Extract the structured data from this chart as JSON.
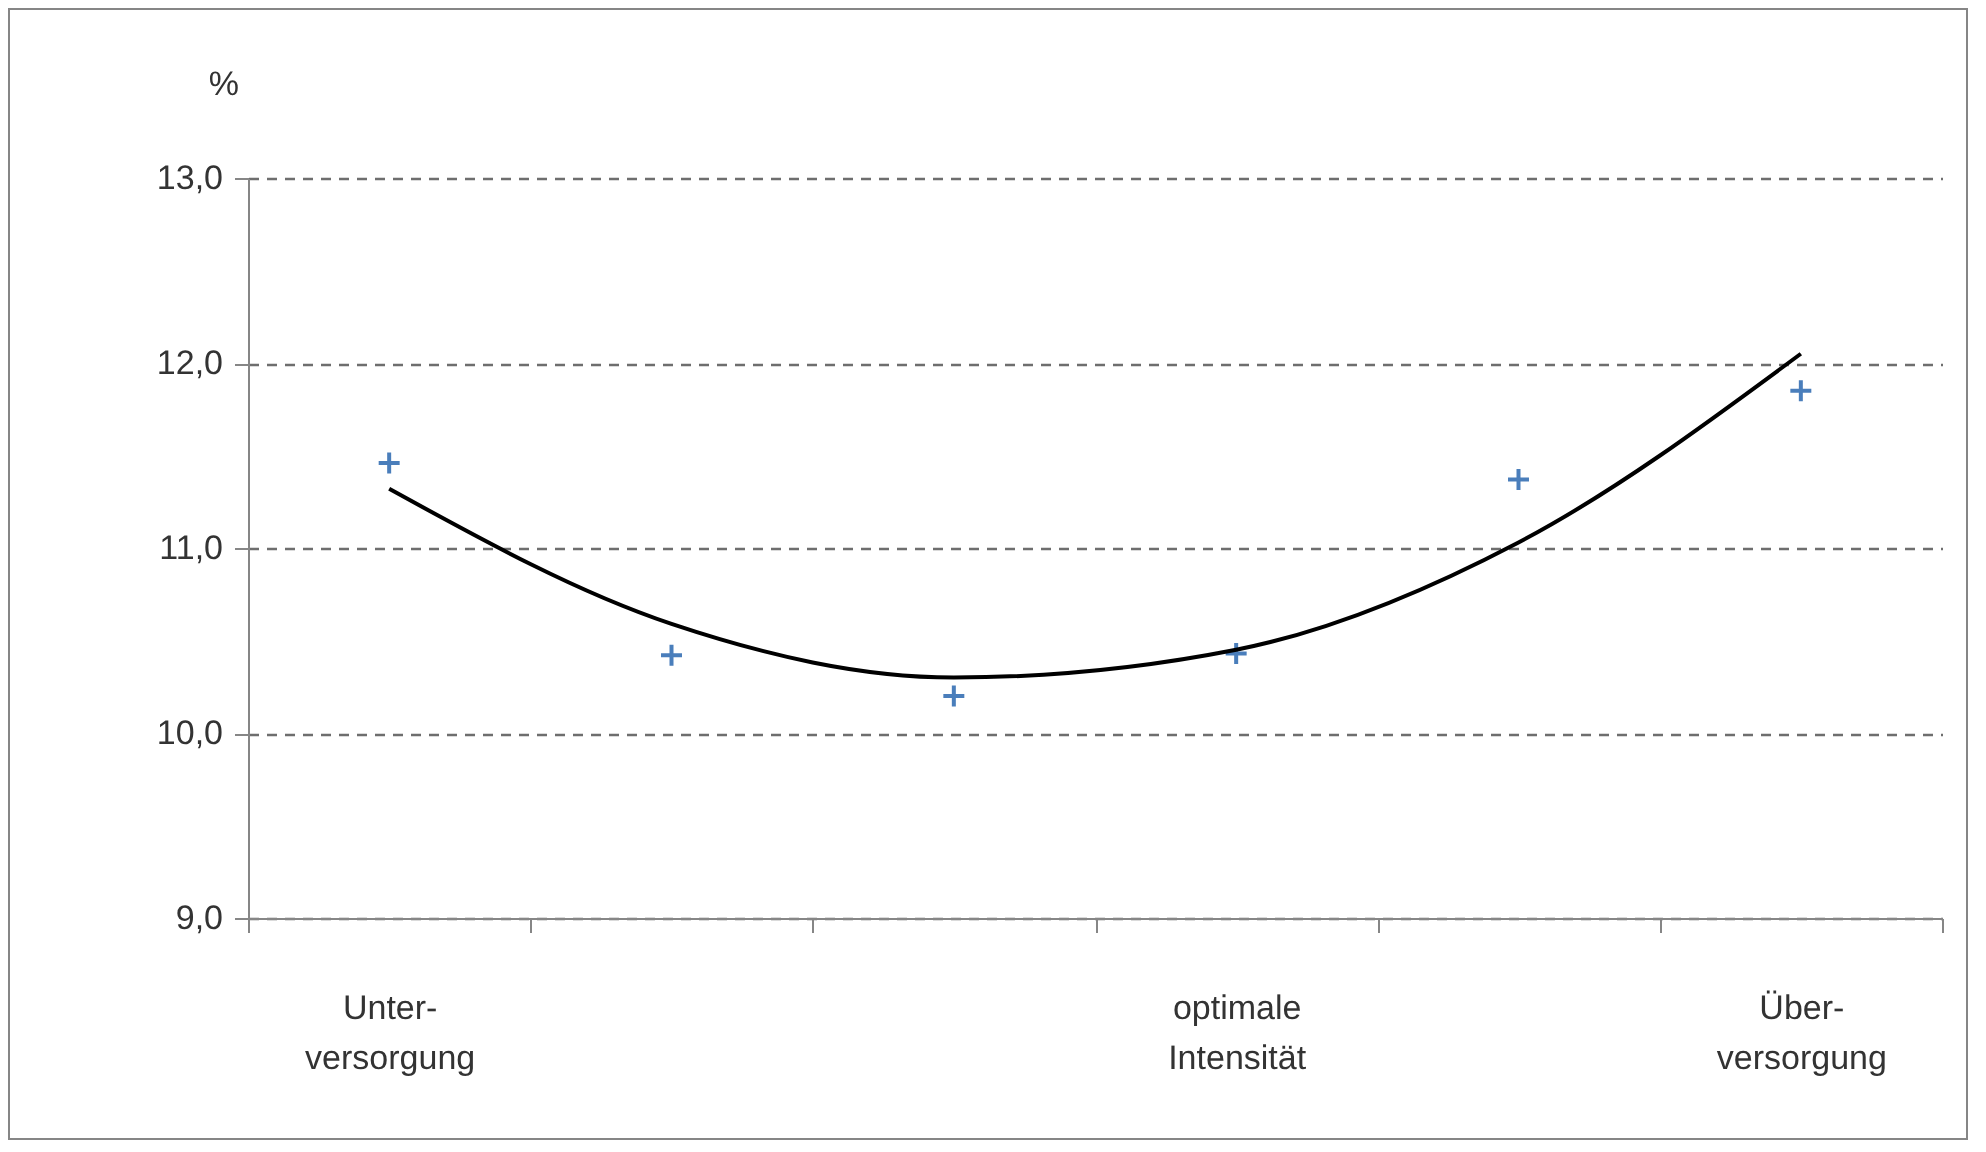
{
  "chart_data": {
    "type": "scatter",
    "ylabel": "%",
    "categories": [
      "Unter-\nversorgung",
      null,
      null,
      "optimale\nIntensität",
      null,
      "Über-\nversorgung"
    ],
    "ylim": [
      9,
      13
    ],
    "yticks": [
      {
        "value": 9,
        "label": "9,0"
      },
      {
        "value": 10,
        "label": "10,0"
      },
      {
        "value": 11,
        "label": "11,0"
      },
      {
        "value": 12,
        "label": "12,0"
      },
      {
        "value": 13,
        "label": "13,0"
      }
    ],
    "grid": "y",
    "series": [
      {
        "color": "#4a7ebb",
        "marker": "cross",
        "values": [
          11.46,
          10.42,
          10.2,
          10.43,
          11.37,
          11.85
        ]
      },
      {
        "type": "line",
        "color": "#000000",
        "marker": "none",
        "values": [
          11.32,
          10.59,
          10.3,
          10.45,
          11.03,
          12.05
        ]
      }
    ]
  }
}
